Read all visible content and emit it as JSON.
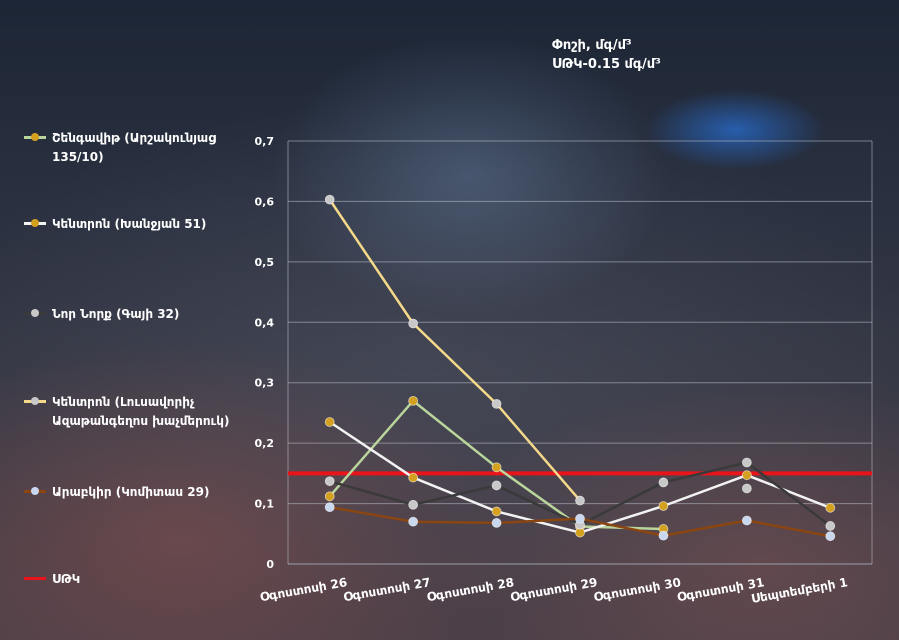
{
  "chart_data": {
    "type": "line",
    "title": "Փոշի, մգ/մ³",
    "subtitle": "ՍԹԿ-0.15 մգ/մ³",
    "categories": [
      "Օգոստոսի 26",
      "Օգոստոսի 27",
      "Օգոստոսի 28",
      "Օգոստոսի 29",
      "Օգոստոսի 30",
      "Օգոստոսի 31",
      "Սեպտեմբերի 1"
    ],
    "ylim": [
      0,
      0.7
    ],
    "yticks": [
      "0",
      "0,1",
      "0,2",
      "0,3",
      "0,4",
      "0,5",
      "0,6",
      "0,7"
    ],
    "grid": true,
    "legend_position": "left",
    "series": [
      {
        "name": "Շենգավիթ (Արշակունյաց 135/10)",
        "color": "#b9d59c",
        "marker": "#d4a020",
        "values": [
          0.112,
          0.27,
          0.16,
          0.062,
          0.058,
          null,
          null
        ]
      },
      {
        "name": "Կենտրոն (Խանջյան 51)",
        "color": "#f2f2f2",
        "marker": "#d4a020",
        "values": [
          0.235,
          0.143,
          0.087,
          0.052,
          0.096,
          0.147,
          0.093
        ]
      },
      {
        "name": "Նոր Նորք (Գայի 32)",
        "color": "#3a3a3a",
        "marker": "#c8c8c8",
        "values": [
          0.137,
          0.098,
          0.13,
          0.065,
          0.135,
          0.168,
          0.063
        ]
      },
      {
        "name": "Կենտրոն (Լուսավորիչ Ազաթանգեղոս խաչմերուկ)",
        "color": "#f5d98a",
        "marker": "#c8c8c8",
        "values": [
          0.603,
          0.398,
          0.265,
          0.105,
          null,
          0.125,
          null
        ]
      },
      {
        "name": "Արաբկիր (Կոմիտաս 29)",
        "color": "#8a4510",
        "marker": "#c9d8ee",
        "values": [
          0.094,
          0.07,
          0.068,
          0.075,
          0.047,
          0.072,
          0.046
        ]
      }
    ],
    "threshold": {
      "name": "ՍԹԿ",
      "value": 0.15,
      "color": "#e8141a"
    }
  }
}
